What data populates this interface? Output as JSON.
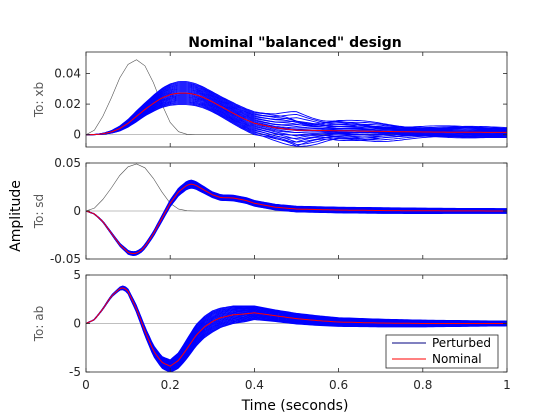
{
  "chart_data": {
    "type": "line",
    "title": "Nominal \"balanced\" design",
    "xlabel": "Time (seconds)",
    "ylabel": "Amplitude",
    "xlim": [
      0,
      1
    ],
    "xticks": [
      "0",
      "0.2",
      "0.4",
      "0.6",
      "0.8",
      "1"
    ],
    "grid": false,
    "legend": {
      "placement": "bottom-right",
      "entries": [
        {
          "name": "Perturbed",
          "color": "#000080"
        },
        {
          "name": "Nominal",
          "color": "#ff0000"
        }
      ]
    },
    "colors": {
      "perturbed_band": "#0000ff",
      "nominal": "#ff0000",
      "input": "#555555",
      "zero": "#808080"
    },
    "subplots": [
      {
        "ylabel": "To: xb",
        "ylim": [
          -0.008,
          0.054
        ],
        "yticks": [
          "0",
          "0.02",
          "0.04"
        ],
        "yticks_values": [
          0,
          0.02,
          0.04
        ],
        "input_signal": {
          "x": [
            0,
            0.02,
            0.04,
            0.06,
            0.08,
            0.1,
            0.12,
            0.14,
            0.16,
            0.18,
            0.2,
            0.22,
            0.24,
            0.26,
            0.3,
            0.4,
            0.6,
            0.8,
            1
          ],
          "y": [
            0,
            0.003,
            0.012,
            0.024,
            0.037,
            0.046,
            0.049,
            0.045,
            0.034,
            0.02,
            0.008,
            0.002,
            0.0003,
            0,
            0,
            0,
            0,
            0,
            0
          ]
        },
        "nominal": {
          "x": [
            0,
            0.02,
            0.04,
            0.06,
            0.08,
            0.1,
            0.12,
            0.14,
            0.16,
            0.18,
            0.2,
            0.22,
            0.24,
            0.26,
            0.28,
            0.3,
            0.32,
            0.34,
            0.36,
            0.38,
            0.4,
            0.45,
            0.5,
            0.55,
            0.6,
            0.7,
            0.8,
            0.9,
            1
          ],
          "y": [
            0,
            0.0001,
            0.0006,
            0.0018,
            0.004,
            0.0075,
            0.012,
            0.0165,
            0.0205,
            0.024,
            0.0262,
            0.0272,
            0.0272,
            0.0262,
            0.0242,
            0.0215,
            0.0185,
            0.0155,
            0.0125,
            0.0098,
            0.0075,
            0.0045,
            0.003,
            0.0028,
            0.0026,
            0.0022,
            0.0018,
            0.0016,
            0.0015
          ]
        },
        "band_offset": [
          0,
          5e-05,
          0.0003,
          0.0008,
          0.0016,
          0.0025,
          0.0035,
          0.0042,
          0.0052,
          0.0062,
          0.007,
          0.0075,
          0.0075,
          0.0072,
          0.0068,
          0.0065,
          0.0065,
          0.0068,
          0.007,
          0.0072,
          0.0075,
          0.0078,
          0.0078,
          0.0068,
          0.0058,
          0.0048,
          0.004,
          0.0035,
          0.003
        ],
        "band_shape": [
          0,
          0,
          0,
          0,
          0,
          0,
          0,
          0,
          0,
          0,
          0,
          0,
          0,
          0,
          0,
          0,
          0,
          0,
          0,
          0,
          0,
          -0.2,
          -0.6,
          -0.3,
          0.2,
          0.4,
          0.3,
          0.2,
          0.1
        ]
      },
      {
        "ylabel": "To: sd",
        "ylim": [
          -0.05,
          0.05
        ],
        "yticks": [
          "-0.05",
          "0",
          "0.05"
        ],
        "yticks_values": [
          -0.05,
          0,
          0.05
        ],
        "input_signal": {
          "x": [
            0,
            0.02,
            0.04,
            0.06,
            0.08,
            0.1,
            0.12,
            0.14,
            0.16,
            0.18,
            0.2,
            0.22,
            0.24,
            0.26,
            0.3,
            0.4,
            0.6,
            0.8,
            1
          ],
          "y": [
            0,
            0.003,
            0.012,
            0.024,
            0.037,
            0.046,
            0.049,
            0.045,
            0.034,
            0.02,
            0.008,
            0.002,
            0.0003,
            0,
            0,
            0,
            0,
            0,
            0
          ]
        },
        "nominal": {
          "x": [
            0,
            0.02,
            0.04,
            0.06,
            0.08,
            0.1,
            0.11,
            0.12,
            0.13,
            0.14,
            0.16,
            0.18,
            0.2,
            0.22,
            0.24,
            0.25,
            0.26,
            0.28,
            0.3,
            0.32,
            0.35,
            0.38,
            0.4,
            0.45,
            0.5,
            0.6,
            0.7,
            0.8,
            0.9,
            1
          ],
          "y": [
            0,
            -0.003,
            -0.011,
            -0.023,
            -0.035,
            -0.043,
            -0.0445,
            -0.044,
            -0.0415,
            -0.037,
            -0.024,
            -0.008,
            0.008,
            0.02,
            0.027,
            0.028,
            0.027,
            0.022,
            0.017,
            0.014,
            0.0135,
            0.011,
            0.008,
            0.004,
            0.002,
            0.001,
            0.0005,
            0.0002,
            0.0001,
            0
          ]
        },
        "band_offset": [
          0,
          0.0002,
          0.0005,
          0.001,
          0.0015,
          0.002,
          0.002,
          0.002,
          0.002,
          0.0022,
          0.0025,
          0.003,
          0.0035,
          0.004,
          0.0042,
          0.0042,
          0.004,
          0.0035,
          0.003,
          0.003,
          0.003,
          0.003,
          0.003,
          0.003,
          0.003,
          0.003,
          0.003,
          0.0028,
          0.0026,
          0.0025
        ],
        "band_shape": [
          0,
          0,
          0,
          0,
          0,
          0,
          0,
          0,
          0,
          0,
          0,
          0,
          0,
          0,
          0,
          0,
          0,
          0,
          0,
          0,
          0,
          0,
          0,
          0,
          0,
          0,
          0,
          0,
          0,
          0
        ]
      },
      {
        "ylabel": "To: ab",
        "ylim": [
          -5,
          5
        ],
        "yticks": [
          "-5",
          "0",
          "5"
        ],
        "yticks_values": [
          -5,
          0,
          5
        ],
        "nominal": {
          "x": [
            0,
            0.02,
            0.04,
            0.06,
            0.08,
            0.09,
            0.1,
            0.12,
            0.14,
            0.16,
            0.18,
            0.2,
            0.22,
            0.24,
            0.26,
            0.28,
            0.3,
            0.32,
            0.35,
            0.38,
            0.4,
            0.45,
            0.5,
            0.55,
            0.6,
            0.7,
            0.8,
            0.9,
            1
          ],
          "y": [
            0,
            0.4,
            1.5,
            2.8,
            3.6,
            3.7,
            3.3,
            1.5,
            -0.8,
            -2.8,
            -4.0,
            -4.4,
            -3.8,
            -2.6,
            -1.3,
            -0.4,
            0.2,
            0.6,
            0.9,
            1.0,
            1.1,
            0.8,
            0.5,
            0.3,
            0.15,
            0.05,
            0,
            0,
            0
          ]
        },
        "band_offset": [
          0,
          0.02,
          0.05,
          0.1,
          0.15,
          0.2,
          0.25,
          0.35,
          0.45,
          0.55,
          0.6,
          0.65,
          0.8,
          1.0,
          1.1,
          1.1,
          1.1,
          1.0,
          0.9,
          0.8,
          0.7,
          0.6,
          0.55,
          0.5,
          0.45,
          0.4,
          0.35,
          0.3,
          0.25
        ],
        "band_shape": [
          0,
          0,
          0,
          0,
          0,
          0,
          0,
          0,
          0,
          0,
          0,
          0,
          0,
          0,
          0,
          0,
          0,
          0,
          0,
          0,
          0,
          0,
          0,
          0,
          0,
          0,
          0,
          0,
          0
        ]
      }
    ]
  }
}
